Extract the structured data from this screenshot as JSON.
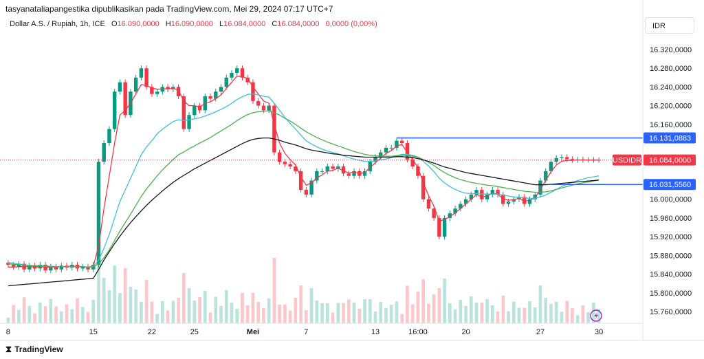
{
  "header": {
    "published_by": "tasyanataliapangestika dipublikasikan pada TradingView.com, Mei 29, 2024 07:17 UTC+7",
    "symbol": "Dollar A.S. / Rupiah, 1h, ICE",
    "ohlc": [
      {
        "key": "O",
        "value": "16.090,0000"
      },
      {
        "key": "H",
        "value": "16.090,0000"
      },
      {
        "key": "L",
        "value": "16.084,0000"
      },
      {
        "key": "C",
        "value": "16.084,0000"
      }
    ],
    "change": "0,0000 (0,00%)",
    "currency": "IDR"
  },
  "footer": {
    "brand": "TradingView",
    "brand_icon": "tradingview-logo-icon"
  },
  "colors": {
    "up": "#089981",
    "down": "#f23645",
    "ema_red": "#f23645",
    "ema_cyan": "#3ec1d3",
    "ema_green": "#4caf50",
    "ema_black": "#131722",
    "line_blue": "#2962ff"
  },
  "chart_data": {
    "type": "line",
    "title": "",
    "y_axis_side": "right",
    "ylim": [
      15735,
      16345
    ],
    "y_ticks": [
      {
        "value": 16320,
        "label": "16.320,0000"
      },
      {
        "value": 16280,
        "label": "16.280,0000"
      },
      {
        "value": 16240,
        "label": "16.240,0000"
      },
      {
        "value": 16200,
        "label": "16.200,0000"
      },
      {
        "value": 16160,
        "label": "16.160,0000"
      },
      {
        "value": 16000,
        "label": "16.000,0000"
      },
      {
        "value": 15960,
        "label": "15.960,0000"
      },
      {
        "value": 15920,
        "label": "15.920,0000"
      },
      {
        "value": 15880,
        "label": "15.880,0000"
      },
      {
        "value": 15840,
        "label": "15.840,0000"
      },
      {
        "value": 15800,
        "label": "15.800,0000"
      },
      {
        "value": 15760,
        "label": "15.760,0000"
      }
    ],
    "x_ticks": [
      "8",
      "15",
      "22",
      "25",
      "Mei",
      "7",
      "13",
      "16:00",
      "20",
      "27",
      "30"
    ],
    "x_tick_index": [
      0,
      16,
      27,
      35,
      46,
      56,
      69,
      77,
      86,
      100,
      111
    ],
    "x_count": 112,
    "price_tags": [
      {
        "label": "",
        "value": "16.131,0883",
        "y": 16131.0883,
        "color": "#2962ff"
      },
      {
        "label": "USDIDR",
        "value": "16.084,0000",
        "y": 16084,
        "color": "#f23645"
      },
      {
        "label": "",
        "value": "16.031,5560",
        "y": 16031.556,
        "color": "#2962ff"
      }
    ],
    "horizontal_lines": [
      {
        "y": 16131.0883,
        "from_index": 73,
        "color": "#2962ff"
      },
      {
        "y": 16031.556,
        "from_index": 102,
        "color": "#2962ff"
      }
    ],
    "candles_close": [
      15860,
      15855,
      15862,
      15850,
      15858,
      15852,
      15860,
      15848,
      15856,
      15850,
      15858,
      15854,
      15860,
      15852,
      15856,
      15850,
      15860,
      16080,
      16120,
      16150,
      16230,
      16250,
      16180,
      16230,
      16260,
      16280,
      16240,
      16225,
      16230,
      16240,
      16235,
      16240,
      16220,
      16150,
      16180,
      16200,
      16190,
      16220,
      16215,
      16230,
      16240,
      16260,
      16270,
      16280,
      16260,
      16250,
      16210,
      16200,
      16190,
      16200,
      16100,
      16080,
      16075,
      16070,
      16060,
      16020,
      16010,
      16040,
      16060,
      16060,
      16070,
      16065,
      16070,
      16055,
      16050,
      16060,
      16050,
      16060,
      16080,
      16090,
      16100,
      16110,
      16110,
      16125,
      16120,
      16085,
      16070,
      16050,
      16000,
      15980,
      15960,
      15920,
      15960,
      15970,
      15980,
      15990,
      16000,
      16010,
      16020,
      16000,
      16010,
      16020,
      16010,
      15990,
      15995,
      16000,
      16005,
      15990,
      16000,
      16010,
      16040,
      16060,
      16080,
      16088,
      16090,
      16086,
      16084,
      16085,
      16084,
      16084,
      16084,
      16084
    ],
    "series": [
      {
        "values": [
          15855,
          15855,
          15856,
          15856,
          15856,
          15855,
          15856,
          15855,
          15855,
          15855,
          15856,
          15856,
          15857,
          15856,
          15856,
          15855,
          15857,
          15900,
          15980,
          16050,
          16120,
          16180,
          16190,
          16205,
          16225,
          16245,
          16243,
          16238,
          16235,
          16236,
          16236,
          16237,
          16233,
          16210,
          16200,
          16200,
          16197,
          16205,
          16208,
          16215,
          16223,
          16237,
          16250,
          16263,
          16262,
          16258,
          16240,
          16225,
          16210,
          16205,
          16160,
          16120,
          16098,
          16085,
          16073,
          16048,
          16030,
          16035,
          16046,
          16052,
          16060,
          16062,
          16066,
          16061,
          16056,
          16058,
          16055,
          16057,
          16068,
          16078,
          16088,
          16098,
          16104,
          16114,
          16117,
          16100,
          16085,
          16068,
          16035,
          16008,
          15985,
          15953,
          15957,
          15963,
          15971,
          15980,
          15990,
          16000,
          16010,
          16005,
          16007,
          16013,
          16011,
          16001,
          15998,
          15999,
          16002,
          15996,
          15998,
          16003,
          16021,
          16040,
          16059,
          16073,
          16081,
          16083,
          16083,
          16084,
          16084,
          16084,
          16084,
          16084
        ]
      },
      {
        "values": [
          15865,
          15863,
          15862,
          15860,
          15859,
          15858,
          15858,
          15857,
          15857,
          15856,
          15856,
          15856,
          15856,
          15856,
          15856,
          15855,
          15856,
          15870,
          15895,
          15925,
          15960,
          15995,
          16020,
          16045,
          16070,
          16095,
          16112,
          16125,
          16140,
          16150,
          16158,
          16166,
          16170,
          16168,
          16170,
          16172,
          16174,
          16178,
          16182,
          16187,
          16192,
          16198,
          16205,
          16213,
          16219,
          16224,
          16225,
          16223,
          16220,
          16218,
          16205,
          16190,
          16175,
          16162,
          16150,
          16137,
          16125,
          16118,
          16112,
          16107,
          16103,
          16100,
          16097,
          16093,
          16089,
          16086,
          16083,
          16081,
          16081,
          16082,
          16084,
          16086,
          16089,
          16093,
          16096,
          16096,
          16094,
          16090,
          16081,
          16071,
          16059,
          16045,
          16035,
          16027,
          16021,
          16016,
          16013,
          16012,
          16012,
          16011,
          16011,
          16011,
          16011,
          16009,
          16007,
          16005,
          16004,
          16003,
          16002,
          16002,
          16005,
          16009,
          16015,
          16021,
          16027,
          16032,
          16036,
          16040,
          16043,
          16046,
          16048,
          16050
        ]
      },
      {
        "values": [
          15862,
          15861,
          15860,
          15859,
          15858,
          15858,
          15857,
          15857,
          15856,
          15856,
          15856,
          15856,
          15856,
          15856,
          15856,
          15855,
          15856,
          15862,
          15875,
          15892,
          15912,
          15932,
          15950,
          15968,
          15987,
          16006,
          16022,
          16036,
          16050,
          16063,
          16074,
          16085,
          16095,
          16101,
          16108,
          16114,
          16120,
          16126,
          16132,
          16139,
          16146,
          16153,
          16160,
          16168,
          16175,
          16181,
          16185,
          16187,
          16188,
          16189,
          16185,
          16180,
          16173,
          16167,
          16160,
          16152,
          16144,
          16138,
          16132,
          16127,
          16122,
          16118,
          16114,
          16110,
          16106,
          16102,
          16099,
          16096,
          16094,
          16093,
          16092,
          16092,
          16092,
          16093,
          16094,
          16093,
          16092,
          16090,
          16085,
          16079,
          16072,
          16064,
          16057,
          16051,
          16046,
          16042,
          16039,
          16036,
          16034,
          16032,
          16030,
          16029,
          16027,
          16025,
          16023,
          16021,
          16019,
          16017,
          16016,
          16015,
          16015,
          16016,
          16018,
          16021,
          16024,
          16027,
          16030,
          16033,
          16035,
          16037,
          16039,
          16041
        ]
      },
      {
        "values": [
          15815,
          15816,
          15817,
          15818,
          15819,
          15820,
          15821,
          15822,
          15823,
          15824,
          15825,
          15826,
          15827,
          15828,
          15829,
          15830,
          15831,
          15850,
          15870,
          15888,
          15905,
          15921,
          15936,
          15950,
          15963,
          15975,
          15987,
          15998,
          16008,
          16018,
          16027,
          16036,
          16044,
          16051,
          16058,
          16065,
          16071,
          16077,
          16083,
          16089,
          16095,
          16101,
          16107,
          16113,
          16119,
          16124,
          16128,
          16130,
          16131,
          16131,
          16129,
          16126,
          16122,
          16119,
          16116,
          16112,
          16108,
          16105,
          16103,
          16101,
          16099,
          16097,
          16096,
          16094,
          16093,
          16092,
          16091,
          16090,
          16090,
          16090,
          16090,
          16090,
          16090,
          16091,
          16091,
          16090,
          16089,
          16087,
          16084,
          16081,
          16077,
          16073,
          16069,
          16066,
          16063,
          16060,
          16057,
          16055,
          16053,
          16051,
          16049,
          16047,
          16045,
          16043,
          16041,
          16039,
          16037,
          16035,
          16033,
          16031,
          16031,
          16031,
          16032,
          16033,
          16034,
          16035,
          16036,
          16037,
          16038,
          16039,
          16040,
          16041
        ]
      }
    ]
  }
}
